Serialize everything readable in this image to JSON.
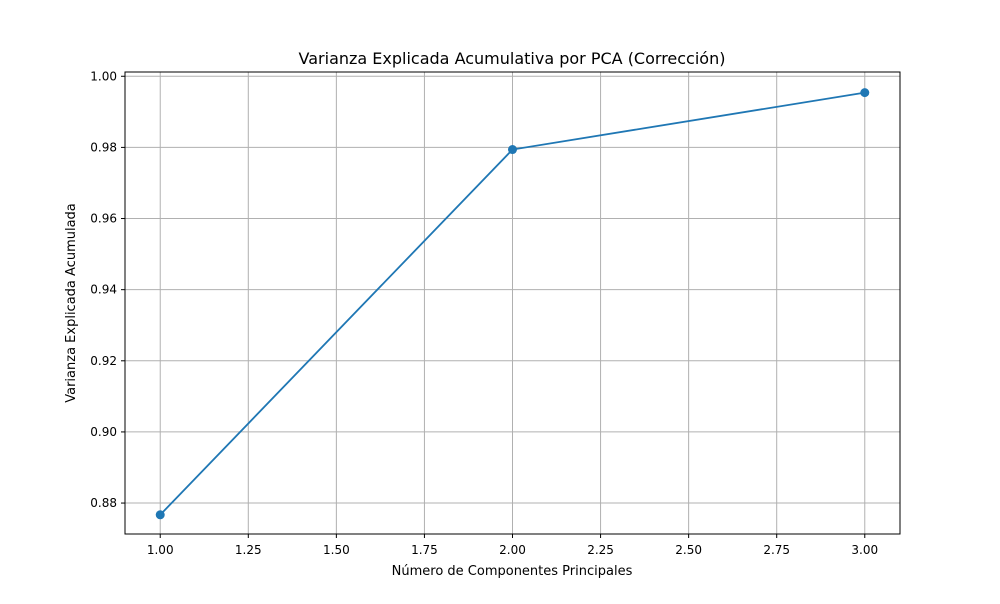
{
  "chart_data": {
    "type": "line",
    "title": "Varianza Explicada Acumulativa por PCA (Corrección)",
    "xlabel": "Número de Componentes Principales",
    "ylabel": "Varianza Explicada Acumulada",
    "x": [
      1,
      2,
      3
    ],
    "series": [
      {
        "values": [
          0.8767,
          0.9794,
          0.9954
        ],
        "color": "#1f77b4",
        "marker": "circle"
      }
    ],
    "xlim": [
      0.9,
      3.1
    ],
    "ylim": [
      0.8713,
      1.0012
    ],
    "xticks": [
      1.0,
      1.25,
      1.5,
      1.75,
      2.0,
      2.25,
      2.5,
      2.75,
      3.0
    ],
    "xtick_labels": [
      "1.00",
      "1.25",
      "1.50",
      "1.75",
      "2.00",
      "2.25",
      "2.50",
      "2.75",
      "3.00"
    ],
    "yticks": [
      0.88,
      0.9,
      0.92,
      0.94,
      0.96,
      0.98,
      1.0
    ],
    "ytick_labels": [
      "0.88",
      "0.90",
      "0.92",
      "0.94",
      "0.96",
      "0.98",
      "1.00"
    ],
    "grid": true,
    "grid_color": "#b0b0b0"
  }
}
